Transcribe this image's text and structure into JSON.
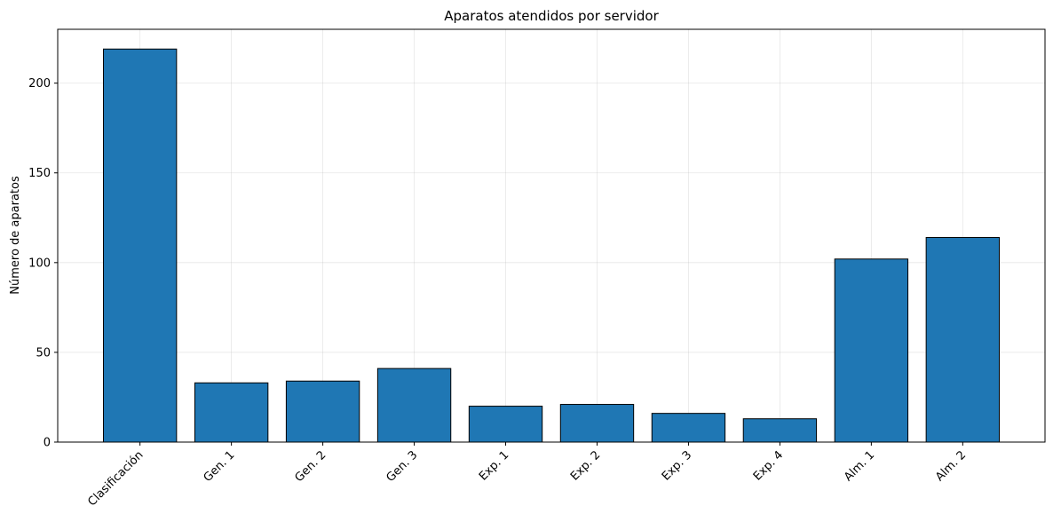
{
  "chart_data": {
    "type": "bar",
    "title": "Aparatos atendidos por servidor",
    "xlabel": "",
    "ylabel": "Número de aparatos",
    "categories": [
      "Clasificación",
      "Gen. 1",
      "Gen. 2",
      "Gen. 3",
      "Exp. 1",
      "Exp. 2",
      "Exp. 3",
      "Exp. 4",
      "Alm. 1",
      "Alm. 2"
    ],
    "values": [
      219,
      33,
      34,
      41,
      20,
      21,
      16,
      13,
      102,
      114
    ],
    "ylim": [
      0,
      230
    ],
    "yticks": [
      0,
      50,
      100,
      150,
      200
    ],
    "grid": true,
    "bar_color": "#1f77b4",
    "edge_color": "#000000",
    "x_tick_rotation_deg": 45
  }
}
